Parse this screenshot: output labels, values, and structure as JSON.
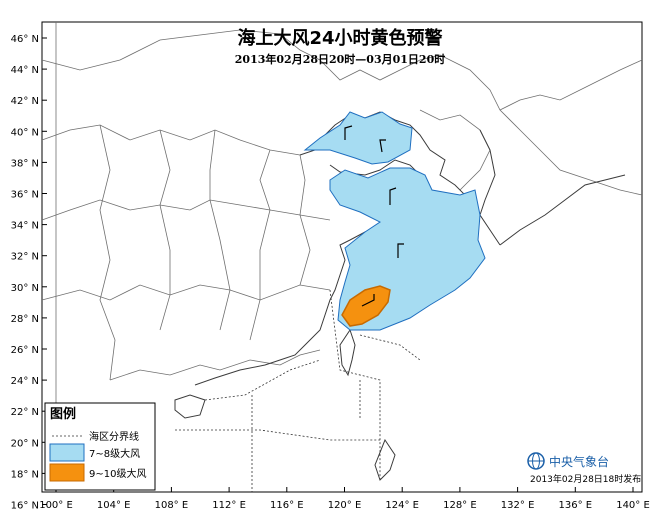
{
  "title": "海上大风24小时黄色预警",
  "subtitle": "2013年02月28日20时—03月01日20时",
  "legend": {
    "title": "图例",
    "items": [
      {
        "label": "海区分界线",
        "kind": "dashed-line"
      },
      {
        "label": "7~8级大风",
        "kind": "swatch",
        "color": "#a6dcf2"
      },
      {
        "label": "9~10级大风",
        "kind": "swatch",
        "color": "#f5910f"
      }
    ]
  },
  "publisher": "中央气象台",
  "issued": "2013年02月28日18时发布",
  "lat_labels": [
    "46° N",
    "44° N",
    "42° N",
    "40° N",
    "38° N",
    "36° N",
    "34° N",
    "32° N",
    "30° N",
    "28° N",
    "26° N",
    "24° N",
    "22° N",
    "20° N",
    "18° N",
    "16° N"
  ],
  "lon_labels": [
    "100° E",
    "104° E",
    "108° E",
    "112° E",
    "116° E",
    "120° E",
    "124° E",
    "128° E",
    "132° E",
    "136° E",
    "140° E"
  ],
  "colors": {
    "gale_7_8": "#a6dcf2",
    "gale_9_10": "#f5910f",
    "border_7_8": "#1f6fc0",
    "border_9_10": "#c86a00"
  },
  "icons": {
    "publisher_logo": "cma-globe-icon",
    "wind": "wind-barb-icon"
  }
}
